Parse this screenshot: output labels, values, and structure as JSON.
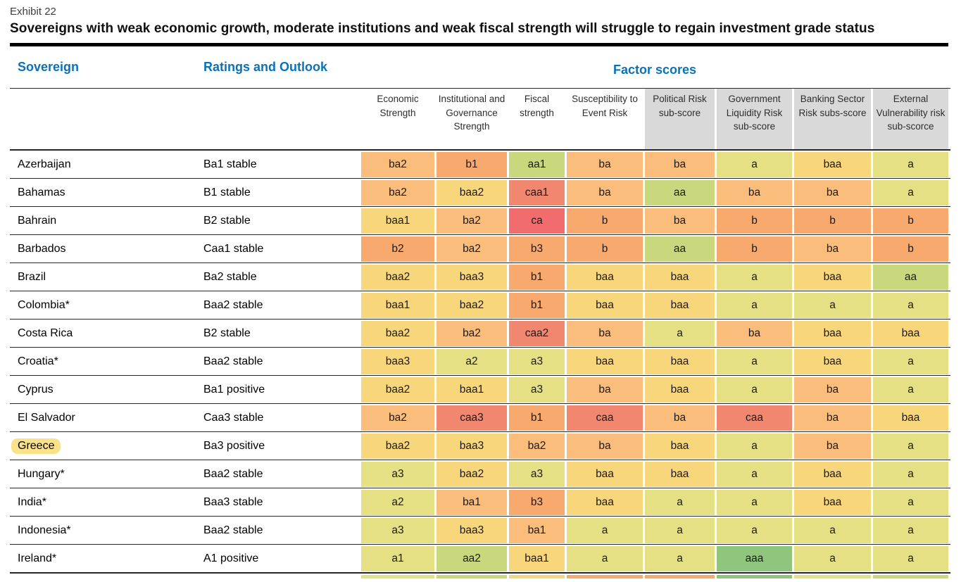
{
  "exhibit_label": "Exhibit 22",
  "title": "Sovereigns with weak economic growth, moderate institutions and weak fiscal strength will struggle to regain investment grade status",
  "table": {
    "group_headers": {
      "sovereign": "Sovereign",
      "ratings": "Ratings and Outlook",
      "factors": "Factor scores"
    },
    "factor_columns": [
      {
        "label": "Economic Strength",
        "gray": false
      },
      {
        "label": "Institutional and Governance Strength",
        "gray": false
      },
      {
        "label": "Fiscal strength",
        "gray": false
      },
      {
        "label": "Susceptibility to Event Risk",
        "gray": false
      },
      {
        "label": "Political Risk sub-score",
        "gray": true
      },
      {
        "label": "Government Liquidity Risk sub-score",
        "gray": true
      },
      {
        "label": "Banking Sector Risk subs-score",
        "gray": true
      },
      {
        "label": "External Vulnerability risk sub-scorce",
        "gray": true
      }
    ],
    "rows": [
      {
        "sovereign": "Azerbaijan",
        "rating": "Ba1 stable",
        "highlight": false,
        "scores": [
          "ba2",
          "b1",
          "aa1",
          "ba",
          "ba",
          "a",
          "baa",
          "a"
        ]
      },
      {
        "sovereign": "Bahamas",
        "rating": "B1 stable",
        "highlight": false,
        "scores": [
          "ba2",
          "baa2",
          "caa1",
          "ba",
          "aa",
          "ba",
          "ba",
          "a"
        ]
      },
      {
        "sovereign": "Bahrain",
        "rating": "B2 stable",
        "highlight": false,
        "scores": [
          "baa1",
          "ba2",
          "ca",
          "b",
          "ba",
          "b",
          "b",
          "b"
        ]
      },
      {
        "sovereign": "Barbados",
        "rating": "Caa1 stable",
        "highlight": false,
        "scores": [
          "b2",
          "ba2",
          "b3",
          "b",
          "aa",
          "b",
          "ba",
          "b"
        ]
      },
      {
        "sovereign": "Brazil",
        "rating": "Ba2 stable",
        "highlight": false,
        "scores": [
          "baa2",
          "baa3",
          "b1",
          "baa",
          "baa",
          "a",
          "baa",
          "aa"
        ]
      },
      {
        "sovereign": "Colombia*",
        "rating": "Baa2 stable",
        "highlight": false,
        "scores": [
          "baa1",
          "baa2",
          "b1",
          "baa",
          "baa",
          "a",
          "a",
          "a"
        ]
      },
      {
        "sovereign": "Costa Rica",
        "rating": "B2 stable",
        "highlight": false,
        "scores": [
          "baa2",
          "ba2",
          "caa2",
          "ba",
          "a",
          "ba",
          "baa",
          "baa"
        ]
      },
      {
        "sovereign": "Croatia*",
        "rating": "Baa2 stable",
        "highlight": false,
        "scores": [
          "baa3",
          "a2",
          "a3",
          "baa",
          "baa",
          "a",
          "baa",
          "a"
        ]
      },
      {
        "sovereign": "Cyprus",
        "rating": "Ba1 positive",
        "highlight": false,
        "scores": [
          "baa2",
          "baa1",
          "a3",
          "ba",
          "baa",
          "a",
          "ba",
          "a"
        ]
      },
      {
        "sovereign": "El Salvador",
        "rating": "Caa3 stable",
        "highlight": false,
        "scores": [
          "ba2",
          "caa3",
          "b1",
          "caa",
          "ba",
          "caa",
          "ba",
          "baa"
        ]
      },
      {
        "sovereign": "Greece",
        "rating": "Ba3 positive",
        "highlight": true,
        "scores": [
          "baa2",
          "baa3",
          "ba2",
          "ba",
          "baa",
          "a",
          "ba",
          "a"
        ]
      },
      {
        "sovereign": "Hungary*",
        "rating": "Baa2 stable",
        "highlight": false,
        "scores": [
          "a3",
          "baa2",
          "a3",
          "baa",
          "baa",
          "a",
          "baa",
          "a"
        ]
      },
      {
        "sovereign": "India*",
        "rating": "Baa3 stable",
        "highlight": false,
        "scores": [
          "a2",
          "ba1",
          "b3",
          "baa",
          "a",
          "a",
          "baa",
          "a"
        ]
      },
      {
        "sovereign": "Indonesia*",
        "rating": "Baa2 stable",
        "highlight": false,
        "scores": [
          "a3",
          "baa3",
          "ba1",
          "a",
          "a",
          "a",
          "a",
          "a"
        ]
      },
      {
        "sovereign": "Ireland*",
        "rating": "A1 positive",
        "highlight": false,
        "scores": [
          "a1",
          "aa2",
          "baa1",
          "a",
          "a",
          "aaa",
          "a",
          "a"
        ]
      }
    ],
    "partial_row_categories": [
      "a",
      "aa",
      "baa",
      "b",
      "b",
      "aaa",
      "a",
      "aa"
    ]
  },
  "colors": {
    "header_blue": "#0b72b8",
    "header_gray": "#d9d9d9",
    "highlight_yellow": "#f9e289",
    "palette": {
      "aaa": "#8fc57d",
      "aa": "#c9d87c",
      "a": "#e5e084",
      "baa": "#f8d67b",
      "ba": "#fbbd7b",
      "b": "#f8a96e",
      "caa": "#f2876f",
      "ca": "#f16c6e"
    }
  }
}
